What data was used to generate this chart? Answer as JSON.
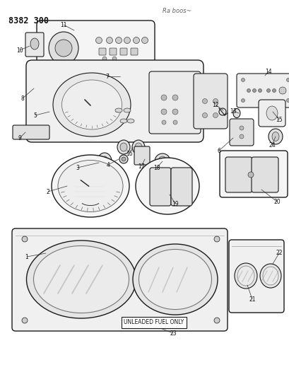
{
  "title": "8382 300",
  "handwritten": "Ra boos~",
  "bg_color": "#ffffff",
  "lc": "#1a1a1a",
  "fig_width": 4.1,
  "fig_height": 5.33,
  "dpi": 100,
  "label_fontsize": 5.5,
  "title_fontsize": 8.5
}
